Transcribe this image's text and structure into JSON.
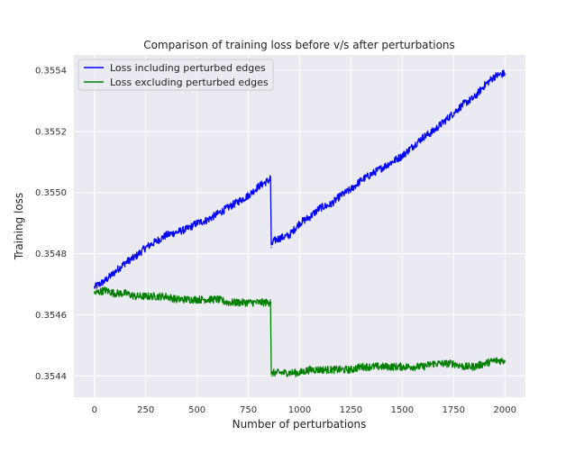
{
  "chart_data": {
    "type": "line",
    "title": "Comparison of training loss before v/s after perturbations",
    "xlabel": "Number of perturbations",
    "ylabel": "Training loss",
    "xlim": [
      -100,
      2100
    ],
    "ylim": [
      0.35433,
      0.35545
    ],
    "xticks": [
      0,
      250,
      500,
      750,
      1000,
      1250,
      1500,
      1750,
      2000
    ],
    "xtick_labels": [
      "0",
      "250",
      "500",
      "750",
      "1000",
      "1250",
      "1500",
      "1750",
      "2000"
    ],
    "yticks": [
      0.3544,
      0.3546,
      0.3548,
      0.355,
      0.3552,
      0.3554
    ],
    "ytick_labels": [
      "0.3544",
      "0.3546",
      "0.3548",
      "0.3550",
      "0.3552",
      "0.3554"
    ],
    "grid": true,
    "legend_position": "upper-left",
    "background_color": "#eaeaf2",
    "series": [
      {
        "name": "Loss including perturbed edges",
        "color": "#0000ff",
        "x": [
          0,
          50,
          100,
          150,
          200,
          250,
          300,
          350,
          400,
          450,
          500,
          550,
          600,
          650,
          700,
          750,
          800,
          850,
          858,
          862,
          870,
          900,
          950,
          1000,
          1050,
          1100,
          1150,
          1200,
          1250,
          1300,
          1350,
          1400,
          1450,
          1500,
          1550,
          1600,
          1650,
          1700,
          1750,
          1800,
          1850,
          1900,
          1950,
          2000
        ],
        "y": [
          0.35469,
          0.35471,
          0.35474,
          0.35477,
          0.35479,
          0.35482,
          0.35484,
          0.35486,
          0.35487,
          0.35488,
          0.3549,
          0.35491,
          0.35493,
          0.35495,
          0.35497,
          0.35499,
          0.35502,
          0.35504,
          0.35505,
          0.35482,
          0.35484,
          0.35485,
          0.35486,
          0.3549,
          0.35492,
          0.35495,
          0.35496,
          0.35499,
          0.35501,
          0.35504,
          0.35506,
          0.35508,
          0.3551,
          0.35512,
          0.35515,
          0.35518,
          0.3552,
          0.35523,
          0.35526,
          0.35529,
          0.35531,
          0.35535,
          0.35538,
          0.35539
        ]
      },
      {
        "name": "Loss excluding perturbed edges",
        "color": "#008000",
        "x": [
          0,
          50,
          100,
          150,
          200,
          250,
          300,
          350,
          400,
          450,
          500,
          550,
          600,
          650,
          700,
          750,
          800,
          850,
          858,
          862,
          870,
          900,
          950,
          1000,
          1050,
          1100,
          1150,
          1200,
          1250,
          1300,
          1350,
          1400,
          1450,
          1500,
          1550,
          1600,
          1650,
          1700,
          1750,
          1800,
          1850,
          1900,
          1950,
          2000
        ],
        "y": [
          0.35467,
          0.35468,
          0.35467,
          0.35467,
          0.35466,
          0.35466,
          0.35466,
          0.35466,
          0.35465,
          0.35465,
          0.35465,
          0.35465,
          0.35465,
          0.35464,
          0.35464,
          0.35464,
          0.35464,
          0.35464,
          0.35465,
          0.3544,
          0.35441,
          0.35441,
          0.35441,
          0.35441,
          0.35442,
          0.35442,
          0.35442,
          0.35442,
          0.35442,
          0.35443,
          0.35443,
          0.35443,
          0.35443,
          0.35443,
          0.35443,
          0.35443,
          0.35444,
          0.35444,
          0.35444,
          0.35443,
          0.35443,
          0.35444,
          0.35445,
          0.35445
        ]
      }
    ]
  }
}
